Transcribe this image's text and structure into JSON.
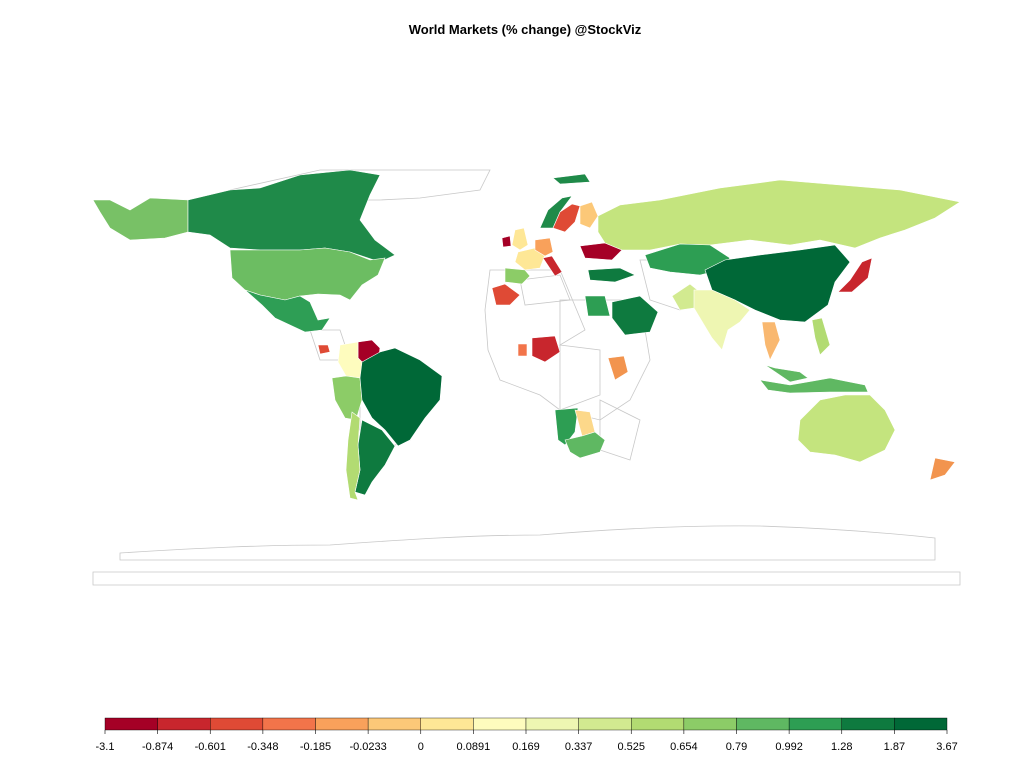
{
  "title": "World Markets (% change) @StockViz",
  "legend": {
    "colors": [
      "#a50026",
      "#c8262d",
      "#df4a35",
      "#f2744a",
      "#f9a15b",
      "#fcc878",
      "#fee796",
      "#fefcbe",
      "#eef6b2",
      "#d2ea90",
      "#b2db72",
      "#8ccc67",
      "#5fb862",
      "#2d9e53",
      "#0e7a3f",
      "#006837"
    ],
    "ticks": [
      "-3.1",
      "-0.874",
      "-0.601",
      "-0.348",
      "-0.185",
      "-0.0233",
      "0",
      "0.0891",
      "0.169",
      "0.337",
      "0.525",
      "0.654",
      "0.79",
      "0.992",
      "1.28",
      "1.87",
      "3.67"
    ]
  },
  "countries": {
    "canada": "#1f8a49",
    "usa": "#6cbd62",
    "mexico": "#2e9e55",
    "alaska": "#78c166",
    "venezuela": "#a50026",
    "colombia": "#fefcbe",
    "peru": "#8ccc67",
    "brazil": "#006837",
    "argentina": "#0e7a3f",
    "chile": "#b2db72",
    "costa_rica": "#df4a35",
    "russia": "#c4e47e",
    "china": "#006837",
    "india": "#eef6b2",
    "japan": "#c8262d",
    "australia": "#c4e47e",
    "new_zealand": "#f2944e",
    "saudi": "#0e7a3f",
    "egypt": "#2d9e53",
    "south_africa": "#5fb862",
    "namibia": "#2d9e53",
    "botswana": "#fcd88a",
    "kenya": "#f2944e",
    "nigeria": "#c8262d",
    "ghana": "#f2744a",
    "morocco": "#df4a35",
    "pakistan": "#d2ea90",
    "kazakhstan": "#2d9e53",
    "turkey": "#0e7a3f",
    "ukraine": "#a50026",
    "norway": "#1f8a49",
    "sweden": "#df4a35",
    "finland": "#fcc878",
    "uk": "#fee796",
    "ireland": "#a50026",
    "france": "#fee796",
    "spain": "#8ccc67",
    "germany": "#f9a15b",
    "italy": "#c8262d",
    "indonesia": "#5fb862",
    "thailand": "#f9b870",
    "philippines": "#b2db72",
    "malaysia": "#5fb862"
  }
}
